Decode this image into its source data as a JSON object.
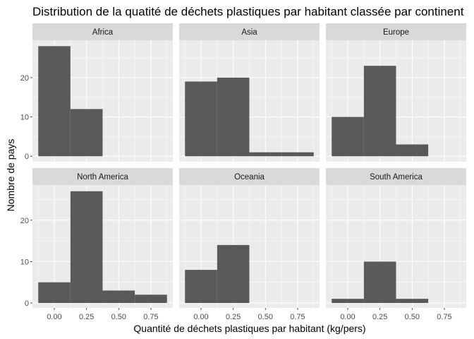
{
  "chart_data": {
    "type": "bar",
    "title": "Distribution de la quatité de déchets plastiques par habitant classée par continent",
    "xlabel": "Quantité de déchets plastiques par habitant (kg/pers)",
    "ylabel": "Nombre de pays",
    "bin_edges": [
      -0.125,
      0.125,
      0.375,
      0.625,
      0.875
    ],
    "x_ticks": [
      0,
      0.25,
      0.5,
      0.75
    ],
    "x_tick_labels": [
      "0.00",
      "0.25",
      "0.50",
      "0.75"
    ],
    "xlim": [
      -0.17,
      0.92
    ],
    "y_ticks": [
      0,
      10,
      20
    ],
    "ylim_top_row": [
      -1.4,
      29.5
    ],
    "ylim_bottom_row": [
      -1.2,
      28.5
    ],
    "grid": true,
    "facets": [
      {
        "name": "Africa",
        "values": [
          28,
          12,
          0,
          0
        ]
      },
      {
        "name": "Asia",
        "values": [
          19,
          20,
          1,
          1
        ]
      },
      {
        "name": "Europe",
        "values": [
          10,
          23,
          3,
          0
        ]
      },
      {
        "name": "North America",
        "values": [
          5,
          27,
          3,
          2
        ]
      },
      {
        "name": "Oceania",
        "values": [
          8,
          14,
          0,
          0
        ]
      },
      {
        "name": "South America",
        "values": [
          1,
          10,
          1,
          0
        ]
      }
    ],
    "colors": {
      "bar": "#595959",
      "panel": "#ebebeb",
      "strip": "#d9d9d9",
      "grid_major": "#ffffff",
      "axis_text": "#4d4d4d"
    }
  }
}
